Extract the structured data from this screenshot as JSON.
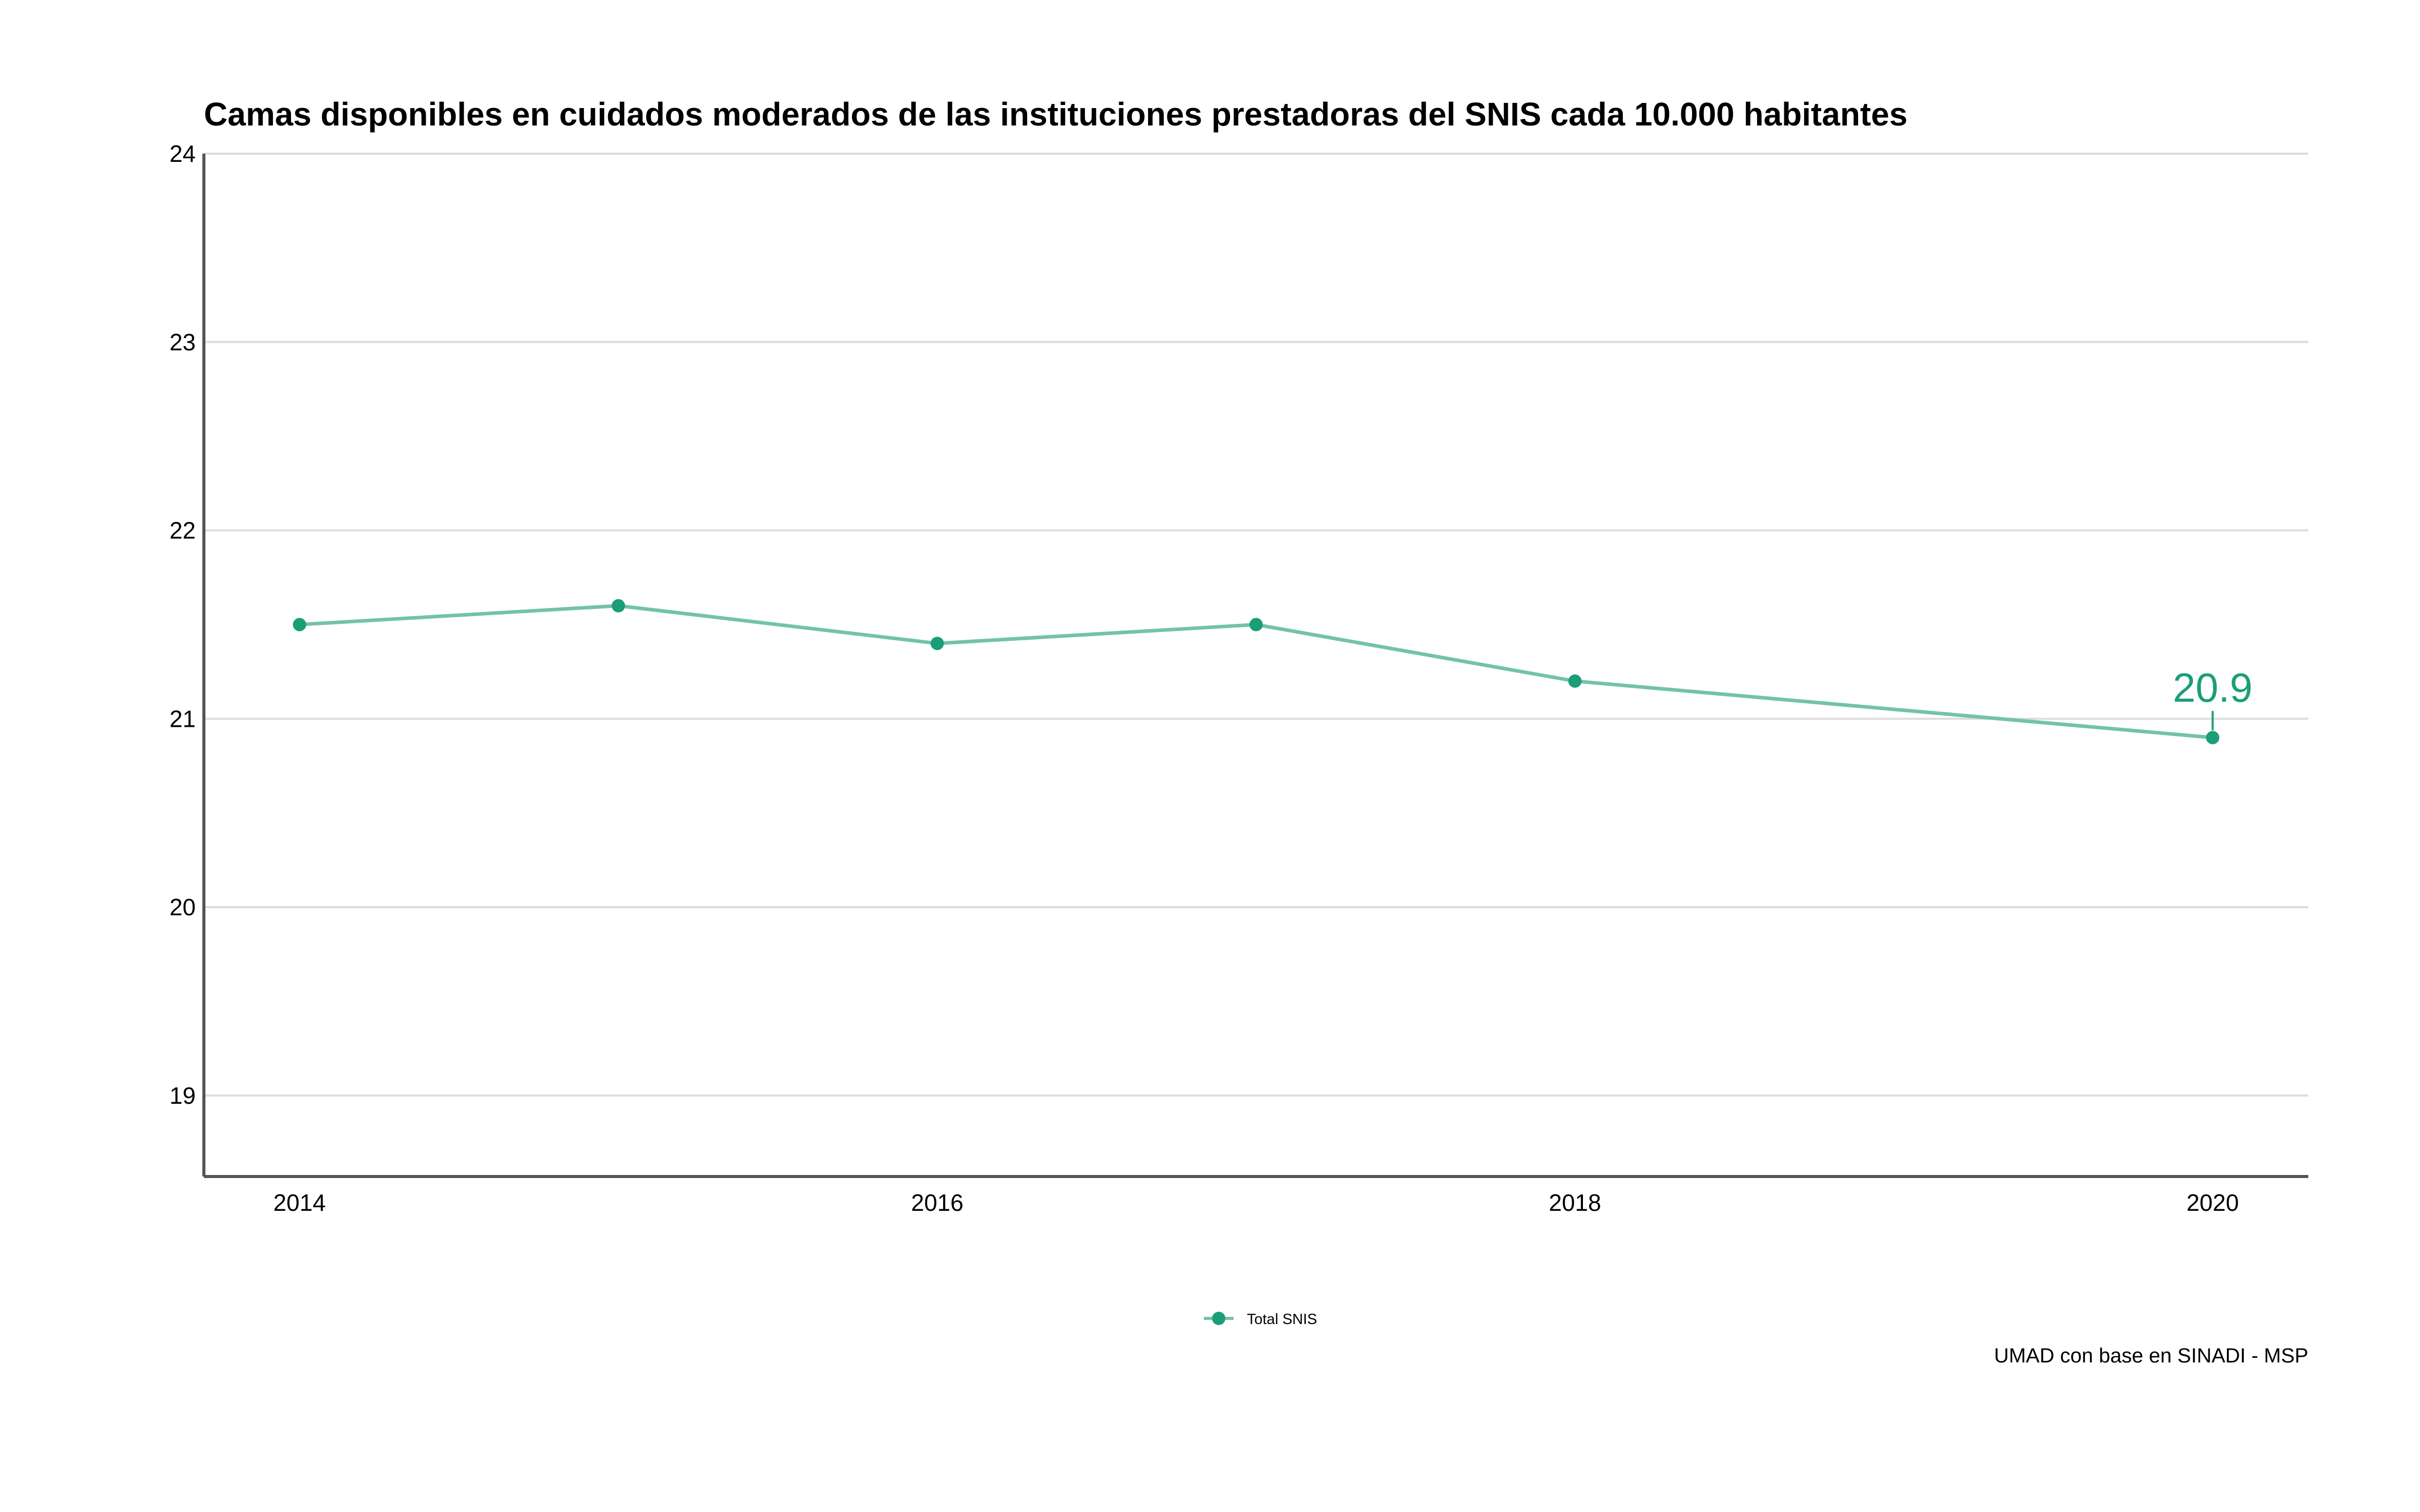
{
  "chart_data": {
    "type": "line",
    "title": "Camas disponibles en cuidados moderados de las instituciones prestadoras del SNIS cada 10.000 habitantes",
    "xlabel": "",
    "ylabel": "",
    "x": [
      2014,
      2015,
      2016,
      2017,
      2018,
      2020
    ],
    "series": [
      {
        "name": "Total SNIS",
        "values": [
          21.5,
          21.6,
          21.4,
          21.5,
          21.2,
          20.9
        ],
        "color": "#1b9e77",
        "line_color": "#73c3a6"
      }
    ],
    "xlim": [
      2013.7,
      2020.3
    ],
    "ylim": [
      18.57,
      24
    ],
    "x_ticks": [
      2014,
      2016,
      2018,
      2020
    ],
    "x_tick_labels": [
      "2014",
      "2016",
      "2018",
      "2020"
    ],
    "y_ticks": [
      19,
      20,
      21,
      22,
      23,
      24
    ],
    "y_tick_labels": [
      "19",
      "20",
      "21",
      "22",
      "23",
      "24"
    ],
    "grid": "horizontal",
    "legend": "bottom-center",
    "annotations": [
      {
        "x": 2020,
        "y": 20.9,
        "text": "20.9"
      }
    ],
    "caption": "UMAD con base en SINADI - MSP"
  }
}
